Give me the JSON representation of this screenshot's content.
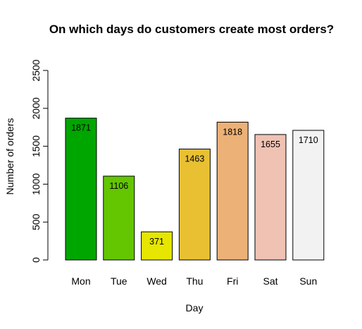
{
  "chart_data": {
    "type": "bar",
    "title": "On which days do customers create most orders?",
    "xlabel": "Day",
    "ylabel": "Number of orders",
    "categories": [
      "Mon",
      "Tue",
      "Wed",
      "Thu",
      "Fri",
      "Sat",
      "Sun"
    ],
    "values": [
      1871,
      1106,
      371,
      1463,
      1818,
      1655,
      1710
    ],
    "colors": [
      "#00a600",
      "#63c600",
      "#e6e600",
      "#e8c032",
      "#ecb176",
      "#efc2b3",
      "#f2f2f2"
    ],
    "ylim": [
      0,
      2500
    ],
    "yticks": [
      0,
      500,
      1000,
      1500,
      2000,
      2500
    ],
    "grid": false,
    "legend": "none"
  }
}
